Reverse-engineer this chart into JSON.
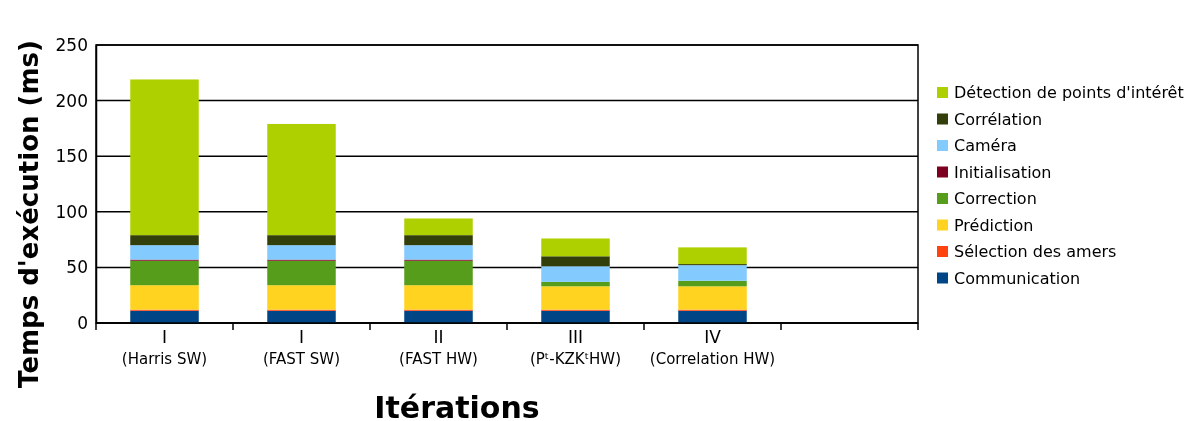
{
  "chart_data": {
    "type": "bar",
    "stacked": true,
    "xlabel": "Itérations",
    "ylabel": "Temps d'exécution (ms)",
    "categories": [
      "I\n(Harris SW)",
      "I\n(FAST SW)",
      "II\n(FAST HW)",
      "III\n(Pᵗ-KZKᵗHW)",
      "IV\n(Correlation HW)",
      null
    ],
    "series": [
      {
        "name": "Communication",
        "color": "#004586",
        "values": [
          11,
          11,
          11,
          11,
          11,
          null
        ]
      },
      {
        "name": "Sélection des amers",
        "color": "#ff420e",
        "values": [
          1,
          1,
          1,
          1,
          1,
          0
        ]
      },
      {
        "name": "Prédiction",
        "color": "#ffd320",
        "values": [
          22,
          22,
          22,
          21,
          21,
          0
        ]
      },
      {
        "name": "Correction",
        "color": "#579d1c",
        "values": [
          22,
          22,
          22,
          4,
          5,
          0
        ]
      },
      {
        "name": "Initialisation",
        "color": "#7e0021",
        "values": [
          1,
          1,
          1,
          0,
          0,
          0
        ]
      },
      {
        "name": "Caméra",
        "color": "#83caff",
        "values": [
          13,
          13,
          13,
          14,
          14,
          0
        ]
      },
      {
        "name": "Corrélation",
        "color": "#333f0a",
        "values": [
          9,
          9,
          9,
          9,
          1,
          0
        ]
      },
      {
        "name": "Détection de points d'intérêt",
        "color": "#afd000",
        "values": [
          140,
          100,
          15,
          16,
          15,
          0
        ]
      }
    ],
    "ylim": [
      0,
      250
    ],
    "yticks": [
      0,
      50,
      100,
      150,
      200,
      250
    ],
    "grid": "y",
    "legend": "right"
  }
}
